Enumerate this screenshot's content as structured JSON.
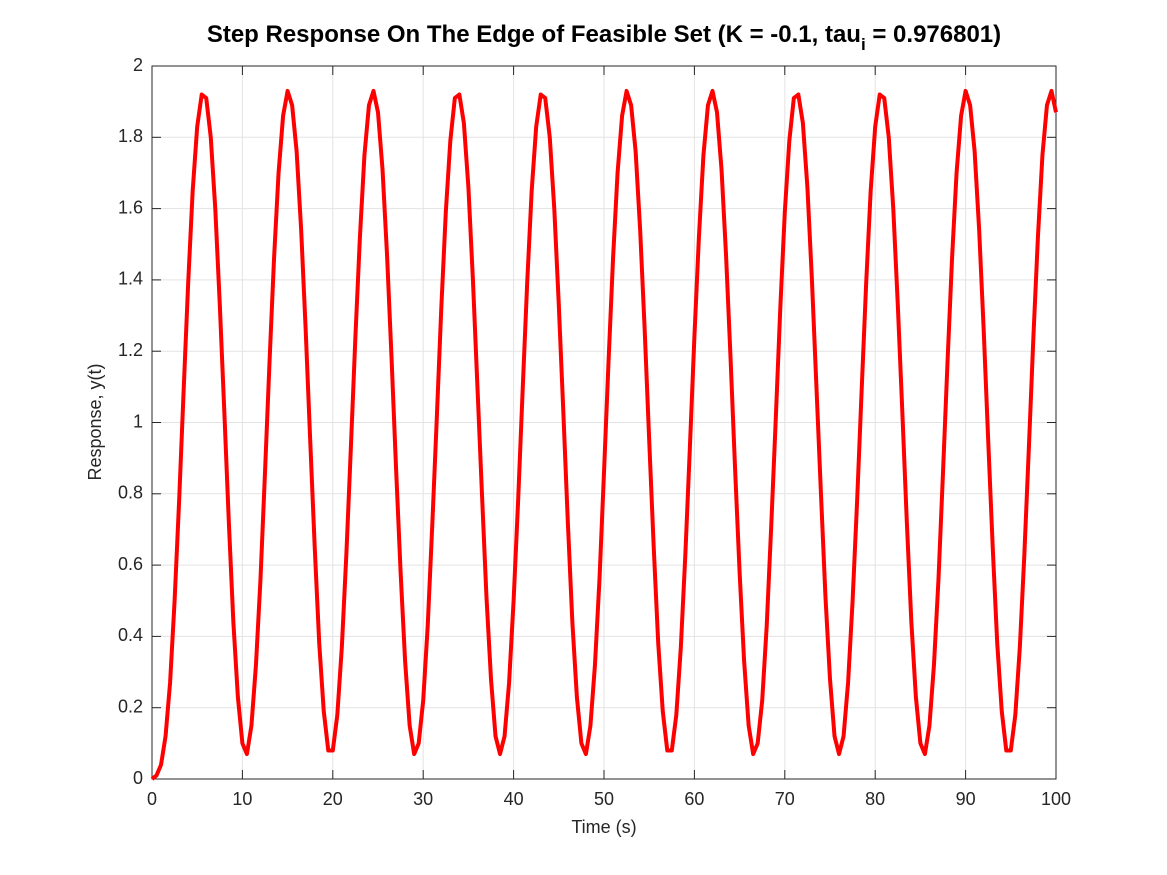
{
  "chart_data": {
    "type": "line",
    "title": "Step Response On The Edge of Feasible Set (K = -0.1, tau",
    "title_subscript": "i",
    "title_end": " = 0.976801)",
    "x_label": "Time (s)",
    "y_label": "Response, y(t)",
    "xlim": [
      0,
      100
    ],
    "ylim": [
      0,
      2
    ],
    "xticks": [
      0,
      10,
      20,
      30,
      40,
      50,
      60,
      70,
      80,
      90,
      100
    ],
    "yticks": [
      0,
      0.2,
      0.4,
      0.6,
      0.8,
      1,
      1.2,
      1.4,
      1.6,
      1.8,
      2
    ],
    "grid": true,
    "x": [
      0,
      0.5,
      1,
      1.5,
      2,
      2.5,
      3,
      3.5,
      4,
      4.5,
      5,
      5.5,
      6,
      6.5,
      7,
      7.5,
      8,
      8.5,
      9,
      9.5,
      10,
      10.5,
      11,
      11.5,
      12,
      12.5,
      13,
      13.5,
      14,
      14.5,
      15,
      15.5,
      16,
      16.5,
      17,
      17.5,
      18,
      18.5,
      19,
      19.5,
      20,
      20.5,
      21,
      21.5,
      22,
      22.5,
      23,
      23.5,
      24,
      24.5,
      25,
      25.5,
      26,
      26.5,
      27,
      27.5,
      28,
      28.5,
      29,
      29.5,
      30,
      30.5,
      31,
      31.5,
      32,
      32.5,
      33,
      33.5,
      34,
      34.5,
      35,
      35.5,
      36,
      36.5,
      37,
      37.5,
      38,
      38.5,
      39,
      39.5,
      40,
      40.5,
      41,
      41.5,
      42,
      42.5,
      43,
      43.5,
      44,
      44.5,
      45,
      45.5,
      46,
      46.5,
      47,
      47.5,
      48,
      48.5,
      49,
      49.5,
      50,
      50.5,
      51,
      51.5,
      52,
      52.5,
      53,
      53.5,
      54,
      54.5,
      55,
      55.5,
      56,
      56.5,
      57,
      57.5,
      58,
      58.5,
      59,
      59.5,
      60,
      60.5,
      61,
      61.5,
      62,
      62.5,
      63,
      63.5,
      64,
      64.5,
      65,
      65.5,
      66,
      66.5,
      67,
      67.5,
      68,
      68.5,
      69,
      69.5,
      70,
      70.5,
      71,
      71.5,
      72,
      72.5,
      73,
      73.5,
      74,
      74.5,
      75,
      75.5,
      76,
      76.5,
      77,
      77.5,
      78,
      78.5,
      79,
      79.5,
      80,
      80.5,
      81,
      81.5,
      82,
      82.5,
      83,
      83.5,
      84,
      84.5,
      85,
      85.5,
      86,
      86.5,
      87,
      87.5,
      88,
      88.5,
      89,
      89.5,
      90,
      90.5,
      91,
      91.5,
      92,
      92.5,
      93,
      93.5,
      94,
      94.5,
      95,
      95.5,
      96,
      96.5,
      97,
      97.5,
      98,
      98.5,
      99,
      99.5,
      100
    ],
    "series": [
      {
        "color": "#ff0000",
        "values": [
          0,
          0.01,
          0.04,
          0.12,
          0.27,
          0.5,
          0.78,
          1.09,
          1.39,
          1.65,
          1.83,
          1.92,
          1.91,
          1.8,
          1.6,
          1.33,
          1.03,
          0.72,
          0.44,
          0.23,
          0.1,
          0.07,
          0.15,
          0.32,
          0.56,
          0.86,
          1.17,
          1.46,
          1.7,
          1.86,
          1.93,
          1.89,
          1.76,
          1.54,
          1.26,
          0.95,
          0.65,
          0.38,
          0.19,
          0.08,
          0.08,
          0.18,
          0.37,
          0.63,
          0.93,
          1.24,
          1.52,
          1.75,
          1.89,
          1.93,
          1.87,
          1.71,
          1.47,
          1.18,
          0.87,
          0.58,
          0.33,
          0.15,
          0.07,
          0.1,
          0.22,
          0.43,
          0.71,
          1.01,
          1.32,
          1.59,
          1.79,
          1.91,
          1.92,
          1.84,
          1.66,
          1.4,
          1.1,
          0.8,
          0.51,
          0.28,
          0.12,
          0.07,
          0.12,
          0.27,
          0.5,
          0.78,
          1.09,
          1.39,
          1.65,
          1.83,
          1.92,
          1.91,
          1.8,
          1.6,
          1.33,
          1.03,
          0.72,
          0.44,
          0.23,
          0.1,
          0.07,
          0.15,
          0.32,
          0.56,
          0.86,
          1.17,
          1.46,
          1.7,
          1.86,
          1.93,
          1.89,
          1.76,
          1.54,
          1.26,
          0.95,
          0.65,
          0.38,
          0.19,
          0.08,
          0.08,
          0.18,
          0.37,
          0.63,
          0.93,
          1.24,
          1.52,
          1.75,
          1.89,
          1.93,
          1.87,
          1.71,
          1.47,
          1.18,
          0.87,
          0.58,
          0.33,
          0.15,
          0.07,
          0.1,
          0.22,
          0.43,
          0.71,
          1.01,
          1.32,
          1.59,
          1.79,
          1.91,
          1.92,
          1.84,
          1.66,
          1.4,
          1.1,
          0.8,
          0.51,
          0.28,
          0.12,
          0.07,
          0.12,
          0.27,
          0.5,
          0.78,
          1.09,
          1.39,
          1.65,
          1.83,
          1.92,
          1.91,
          1.8,
          1.6,
          1.33,
          1.03,
          0.72,
          0.44,
          0.23,
          0.1,
          0.07,
          0.15,
          0.32,
          0.56,
          0.86,
          1.17,
          1.46,
          1.7,
          1.86,
          1.93,
          1.89,
          1.76,
          1.54,
          1.26,
          0.95,
          0.65,
          0.38,
          0.19,
          0.08,
          0.08,
          0.18,
          0.37,
          0.63,
          0.93,
          1.24,
          1.52,
          1.75,
          1.89,
          1.93,
          1.87
        ]
      }
    ]
  }
}
